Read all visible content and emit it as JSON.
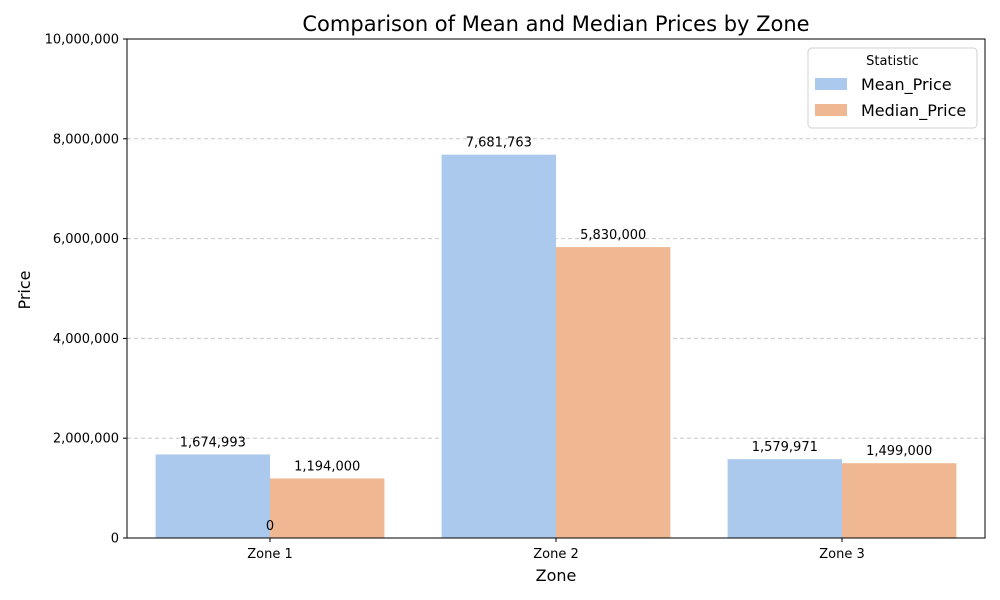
{
  "chart_data": {
    "type": "bar",
    "title": "Comparison of Mean and Median Prices by Zone",
    "xlabel": "Zone",
    "ylabel": "Price",
    "categories": [
      "Zone 1",
      "Zone 2",
      "Zone 3"
    ],
    "series": [
      {
        "name": "Mean_Price",
        "color": "#abc9ed",
        "values": [
          1674993,
          7681763,
          1579971
        ],
        "labels": [
          "1,674,993",
          "7,681,763",
          "1,579,971"
        ]
      },
      {
        "name": "Median_Price",
        "color": "#f0b892",
        "values": [
          1194000,
          5830000,
          1499000
        ],
        "labels": [
          "1,194,000",
          "5,830,000",
          "1,499,000"
        ]
      }
    ],
    "ylim": [
      0,
      10000000
    ],
    "yticks": [
      0,
      2000000,
      4000000,
      6000000,
      8000000,
      10000000
    ],
    "ytick_labels": [
      "0",
      "2,000,000",
      "4,000,000",
      "6,000,000",
      "8,000,000",
      "10,000,000"
    ],
    "grid": "y-dashed",
    "legend": {
      "title": "Statistic",
      "position": "top-right"
    },
    "annotations": [
      {
        "text": "0",
        "category": "Zone 1",
        "value": 0
      }
    ]
  }
}
